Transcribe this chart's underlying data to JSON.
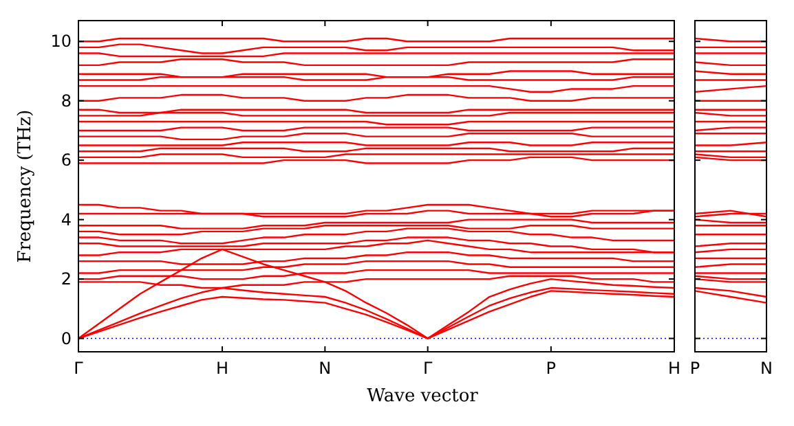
{
  "chart_data": [
    {
      "type": "line",
      "xlabel": "Wave vector",
      "ylabel": "Frequency (THz)",
      "categories": [
        "Γ",
        null,
        null,
        null,
        null,
        null,
        null,
        "H",
        null,
        null,
        null,
        null,
        "N",
        null,
        null,
        null,
        null,
        "Γ",
        null,
        null,
        null,
        null,
        null,
        "P",
        null,
        null,
        null,
        null,
        null,
        "H"
      ],
      "ylim": [
        -0.45,
        10.7
      ],
      "yticks": [
        0,
        2,
        4,
        6,
        8,
        10
      ],
      "ref_lines": [
        {
          "axis": "y",
          "value": 0,
          "color": "#0000ff",
          "line_style": "dotted"
        }
      ],
      "series": [
        {
          "color": "#ff0000",
          "values": [
            0,
            0.23,
            0.46,
            0.69,
            0.9,
            1.1,
            1.3,
            1.4,
            1.36,
            1.32,
            1.3,
            1.25,
            1.2,
            1.0,
            0.8,
            0.55,
            0.28,
            0,
            0.3,
            0.6,
            0.9,
            1.15,
            1.4,
            1.6,
            1.57,
            1.53,
            1.5,
            1.47,
            1.43,
            1.4
          ]
        },
        {
          "color": "#ff0000",
          "values": [
            0,
            0.28,
            0.56,
            0.84,
            1.1,
            1.35,
            1.55,
            1.7,
            1.62,
            1.55,
            1.5,
            1.45,
            1.4,
            1.2,
            0.95,
            0.65,
            0.33,
            0,
            0.37,
            0.74,
            1.1,
            1.35,
            1.55,
            1.7,
            1.67,
            1.63,
            1.6,
            1.57,
            1.53,
            1.5
          ]
        },
        {
          "color": "#ff0000",
          "values": [
            0,
            0.5,
            1.0,
            1.5,
            1.9,
            2.3,
            2.7,
            3.0,
            2.75,
            2.5,
            2.3,
            2.1,
            1.9,
            1.6,
            1.2,
            0.85,
            0.45,
            0,
            0.45,
            0.9,
            1.4,
            1.65,
            1.85,
            2.0,
            1.93,
            1.87,
            1.8,
            1.77,
            1.73,
            1.7
          ]
        },
        {
          "color": "#ff0000",
          "values": [
            1.9,
            1.9,
            1.9,
            1.9,
            1.8,
            1.8,
            1.7,
            1.7,
            1.8,
            1.8,
            1.8,
            1.9,
            1.9,
            1.9,
            2.0,
            2.0,
            2.0,
            2.0,
            2.0,
            2.0,
            2.0,
            2.1,
            2.1,
            2.1,
            2.1,
            2.0,
            2.0,
            2.0,
            1.9,
            1.9
          ]
        },
        {
          "color": "#ff0000",
          "values": [
            2.0,
            2.0,
            2.1,
            2.1,
            2.1,
            2.1,
            2.0,
            2.0,
            2.0,
            2.1,
            2.1,
            2.2,
            2.2,
            2.2,
            2.3,
            2.3,
            2.3,
            2.3,
            2.3,
            2.3,
            2.2,
            2.2,
            2.2,
            2.2,
            2.2,
            2.2,
            2.2,
            2.2,
            2.2,
            2.2
          ]
        },
        {
          "color": "#ff0000",
          "values": [
            2.2,
            2.2,
            2.3,
            2.3,
            2.3,
            2.3,
            2.3,
            2.3,
            2.3,
            2.4,
            2.4,
            2.5,
            2.5,
            2.5,
            2.6,
            2.6,
            2.6,
            2.6,
            2.6,
            2.5,
            2.5,
            2.4,
            2.4,
            2.4,
            2.4,
            2.4,
            2.4,
            2.4,
            2.4,
            2.4
          ]
        },
        {
          "color": "#ff0000",
          "values": [
            2.6,
            2.6,
            2.6,
            2.6,
            2.6,
            2.5,
            2.5,
            2.5,
            2.5,
            2.6,
            2.6,
            2.7,
            2.7,
            2.7,
            2.8,
            2.8,
            2.9,
            2.9,
            2.9,
            2.8,
            2.8,
            2.7,
            2.7,
            2.7,
            2.7,
            2.7,
            2.7,
            2.6,
            2.6,
            2.6
          ]
        },
        {
          "color": "#ff0000",
          "values": [
            2.8,
            2.8,
            2.9,
            2.9,
            2.9,
            3.0,
            3.0,
            3.0,
            3.0,
            3.0,
            3.0,
            3.0,
            3.0,
            3.1,
            3.1,
            3.2,
            3.2,
            3.3,
            3.2,
            3.1,
            3.0,
            3.0,
            2.9,
            2.9,
            2.9,
            2.9,
            2.9,
            2.9,
            2.9,
            2.9
          ]
        },
        {
          "color": "#ff0000",
          "values": [
            3.2,
            3.2,
            3.1,
            3.1,
            3.1,
            3.1,
            3.1,
            3.1,
            3.1,
            3.2,
            3.2,
            3.2,
            3.2,
            3.2,
            3.3,
            3.3,
            3.4,
            3.4,
            3.4,
            3.3,
            3.3,
            3.2,
            3.2,
            3.1,
            3.1,
            3.0,
            3.0,
            3.0,
            2.9,
            2.9
          ]
        },
        {
          "color": "#ff0000",
          "values": [
            3.4,
            3.4,
            3.3,
            3.3,
            3.3,
            3.2,
            3.2,
            3.2,
            3.3,
            3.4,
            3.4,
            3.5,
            3.5,
            3.5,
            3.6,
            3.6,
            3.7,
            3.7,
            3.7,
            3.6,
            3.6,
            3.6,
            3.5,
            3.5,
            3.4,
            3.4,
            3.3,
            3.3,
            3.3,
            3.3
          ]
        },
        {
          "color": "#ff0000",
          "values": [
            3.6,
            3.6,
            3.5,
            3.5,
            3.5,
            3.5,
            3.6,
            3.6,
            3.6,
            3.7,
            3.7,
            3.7,
            3.8,
            3.8,
            3.8,
            3.8,
            3.8,
            3.8,
            3.8,
            3.7,
            3.7,
            3.7,
            3.8,
            3.8,
            3.8,
            3.7,
            3.7,
            3.7,
            3.7,
            3.7
          ]
        },
        {
          "color": "#ff0000",
          "values": [
            3.8,
            3.8,
            3.8,
            3.8,
            3.8,
            3.7,
            3.7,
            3.7,
            3.7,
            3.8,
            3.8,
            3.8,
            3.9,
            3.9,
            3.9,
            3.9,
            3.9,
            3.9,
            3.9,
            4.0,
            4.0,
            4.0,
            4.0,
            4.0,
            4.0,
            3.9,
            3.9,
            3.9,
            3.9,
            3.9
          ]
        },
        {
          "color": "#ff0000",
          "values": [
            4.5,
            4.5,
            4.4,
            4.4,
            4.3,
            4.3,
            4.2,
            4.2,
            4.2,
            4.2,
            4.2,
            4.2,
            4.2,
            4.2,
            4.3,
            4.3,
            4.4,
            4.5,
            4.5,
            4.5,
            4.4,
            4.3,
            4.2,
            4.1,
            4.1,
            4.2,
            4.2,
            4.2,
            4.3,
            4.3
          ]
        },
        {
          "color": "#ff0000",
          "values": [
            4.2,
            4.2,
            4.2,
            4.2,
            4.2,
            4.2,
            4.2,
            4.2,
            4.2,
            4.1,
            4.1,
            4.1,
            4.1,
            4.1,
            4.2,
            4.2,
            4.2,
            4.3,
            4.3,
            4.2,
            4.2,
            4.2,
            4.2,
            4.2,
            4.2,
            4.3,
            4.3,
            4.3,
            4.3,
            4.3
          ]
        },
        {
          "color": "#ff0000",
          "values": [
            5.9,
            5.9,
            5.9,
            5.9,
            5.9,
            5.9,
            5.9,
            5.9,
            5.9,
            5.9,
            6.0,
            6.0,
            6.0,
            6.0,
            5.9,
            5.9,
            5.9,
            5.9,
            5.9,
            6.0,
            6.0,
            6.0,
            6.1,
            6.1,
            6.1,
            6.0,
            6.0,
            6.0,
            6.0,
            6.0
          ]
        },
        {
          "color": "#ff0000",
          "values": [
            6.1,
            6.1,
            6.1,
            6.1,
            6.2,
            6.2,
            6.2,
            6.2,
            6.1,
            6.1,
            6.1,
            6.1,
            6.1,
            6.2,
            6.2,
            6.2,
            6.2,
            6.2,
            6.2,
            6.2,
            6.2,
            6.2,
            6.2,
            6.2,
            6.2,
            6.2,
            6.2,
            6.2,
            6.2,
            6.2
          ]
        },
        {
          "color": "#ff0000",
          "values": [
            6.3,
            6.3,
            6.3,
            6.3,
            6.4,
            6.4,
            6.4,
            6.4,
            6.4,
            6.4,
            6.4,
            6.3,
            6.3,
            6.3,
            6.4,
            6.4,
            6.4,
            6.4,
            6.4,
            6.4,
            6.4,
            6.3,
            6.3,
            6.3,
            6.3,
            6.3,
            6.3,
            6.4,
            6.4,
            6.4
          ]
        },
        {
          "color": "#ff0000",
          "values": [
            6.5,
            6.5,
            6.5,
            6.5,
            6.5,
            6.5,
            6.5,
            6.5,
            6.6,
            6.6,
            6.6,
            6.6,
            6.6,
            6.6,
            6.5,
            6.5,
            6.5,
            6.5,
            6.5,
            6.6,
            6.6,
            6.6,
            6.5,
            6.5,
            6.5,
            6.6,
            6.6,
            6.6,
            6.6,
            6.6
          ]
        },
        {
          "color": "#ff0000",
          "values": [
            6.8,
            6.8,
            6.8,
            6.8,
            6.8,
            6.7,
            6.7,
            6.7,
            6.8,
            6.8,
            6.8,
            6.9,
            6.9,
            6.9,
            6.8,
            6.8,
            6.8,
            6.8,
            6.8,
            6.9,
            6.9,
            6.9,
            6.9,
            6.9,
            6.9,
            6.8,
            6.8,
            6.8,
            6.8,
            6.8
          ]
        },
        {
          "color": "#ff0000",
          "values": [
            7.0,
            7.0,
            7.0,
            7.0,
            7.0,
            7.1,
            7.1,
            7.1,
            7.0,
            7.0,
            7.0,
            7.1,
            7.1,
            7.1,
            7.1,
            7.1,
            7.1,
            7.1,
            7.1,
            7.0,
            7.0,
            7.0,
            7.0,
            7.0,
            7.0,
            7.1,
            7.1,
            7.1,
            7.1,
            7.1
          ]
        },
        {
          "color": "#ff0000",
          "values": [
            7.3,
            7.3,
            7.3,
            7.3,
            7.3,
            7.3,
            7.3,
            7.3,
            7.3,
            7.3,
            7.3,
            7.3,
            7.3,
            7.3,
            7.3,
            7.2,
            7.2,
            7.2,
            7.2,
            7.3,
            7.3,
            7.3,
            7.3,
            7.3,
            7.3,
            7.3,
            7.3,
            7.3,
            7.3,
            7.3
          ]
        },
        {
          "color": "#ff0000",
          "values": [
            7.5,
            7.5,
            7.5,
            7.5,
            7.6,
            7.6,
            7.6,
            7.6,
            7.5,
            7.5,
            7.5,
            7.5,
            7.5,
            7.5,
            7.5,
            7.5,
            7.5,
            7.5,
            7.5,
            7.5,
            7.5,
            7.6,
            7.6,
            7.6,
            7.6,
            7.6,
            7.6,
            7.6,
            7.6,
            7.6
          ]
        },
        {
          "color": "#ff0000",
          "values": [
            7.7,
            7.7,
            7.6,
            7.6,
            7.6,
            7.7,
            7.7,
            7.7,
            7.7,
            7.7,
            7.7,
            7.7,
            7.7,
            7.7,
            7.6,
            7.6,
            7.6,
            7.6,
            7.6,
            7.7,
            7.7,
            7.7,
            7.7,
            7.7,
            7.7,
            7.7,
            7.7,
            7.7,
            7.7,
            7.7
          ]
        },
        {
          "color": "#ff0000",
          "values": [
            8.0,
            8.0,
            8.1,
            8.1,
            8.1,
            8.2,
            8.2,
            8.2,
            8.1,
            8.1,
            8.1,
            8.0,
            8.0,
            8.0,
            8.1,
            8.1,
            8.2,
            8.2,
            8.2,
            8.1,
            8.1,
            8.1,
            8.0,
            8.0,
            8.0,
            8.1,
            8.1,
            8.1,
            8.1,
            8.1
          ]
        },
        {
          "color": "#ff0000",
          "values": [
            8.5,
            8.5,
            8.5,
            8.5,
            8.5,
            8.5,
            8.5,
            8.5,
            8.5,
            8.5,
            8.5,
            8.5,
            8.5,
            8.5,
            8.5,
            8.5,
            8.5,
            8.5,
            8.5,
            8.5,
            8.5,
            8.4,
            8.3,
            8.3,
            8.4,
            8.4,
            8.4,
            8.5,
            8.5,
            8.5
          ]
        },
        {
          "color": "#ff0000",
          "values": [
            8.7,
            8.7,
            8.7,
            8.7,
            8.8,
            8.8,
            8.8,
            8.8,
            8.8,
            8.8,
            8.8,
            8.7,
            8.7,
            8.7,
            8.7,
            8.8,
            8.8,
            8.8,
            8.8,
            8.7,
            8.7,
            8.7,
            8.7,
            8.7,
            8.7,
            8.7,
            8.7,
            8.8,
            8.8,
            8.8
          ]
        },
        {
          "color": "#ff0000",
          "values": [
            8.9,
            8.9,
            8.9,
            8.9,
            8.9,
            8.8,
            8.8,
            8.8,
            8.9,
            8.9,
            8.9,
            8.9,
            8.9,
            8.9,
            8.9,
            8.8,
            8.8,
            8.8,
            8.9,
            8.9,
            8.9,
            9.0,
            9.0,
            9.0,
            9.0,
            8.9,
            8.9,
            8.9,
            8.9,
            8.9
          ]
        },
        {
          "color": "#ff0000",
          "values": [
            9.2,
            9.2,
            9.3,
            9.3,
            9.3,
            9.4,
            9.4,
            9.4,
            9.3,
            9.3,
            9.3,
            9.2,
            9.2,
            9.2,
            9.2,
            9.2,
            9.2,
            9.2,
            9.2,
            9.3,
            9.3,
            9.3,
            9.3,
            9.3,
            9.3,
            9.3,
            9.3,
            9.4,
            9.4,
            9.4
          ]
        },
        {
          "color": "#ff0000",
          "values": [
            9.6,
            9.6,
            9.5,
            9.5,
            9.5,
            9.5,
            9.5,
            9.5,
            9.5,
            9.5,
            9.6,
            9.6,
            9.6,
            9.6,
            9.6,
            9.6,
            9.6,
            9.6,
            9.6,
            9.6,
            9.6,
            9.6,
            9.6,
            9.6,
            9.6,
            9.6,
            9.6,
            9.6,
            9.6,
            9.6
          ]
        },
        {
          "color": "#ff0000",
          "values": [
            9.8,
            9.8,
            9.9,
            9.9,
            9.8,
            9.7,
            9.6,
            9.6,
            9.7,
            9.8,
            9.8,
            9.8,
            9.8,
            9.8,
            9.7,
            9.7,
            9.8,
            9.8,
            9.8,
            9.8,
            9.8,
            9.8,
            9.8,
            9.8,
            9.8,
            9.8,
            9.8,
            9.7,
            9.7,
            9.7
          ]
        },
        {
          "color": "#ff0000",
          "values": [
            10.0,
            10.0,
            10.1,
            10.1,
            10.1,
            10.1,
            10.1,
            10.1,
            10.1,
            10.1,
            10.0,
            10.0,
            10.0,
            10.0,
            10.1,
            10.1,
            10.0,
            10.0,
            10.0,
            10.0,
            10.0,
            10.1,
            10.1,
            10.1,
            10.1,
            10.1,
            10.1,
            10.1,
            10.1,
            10.1
          ]
        }
      ]
    },
    {
      "type": "line",
      "categories": [
        "P",
        null,
        "N"
      ],
      "ylim": [
        -0.45,
        10.7
      ],
      "yticks": [
        0,
        2,
        4,
        6,
        8,
        10
      ],
      "tick_labels": "x",
      "ref_lines": [
        {
          "axis": "y",
          "value": 0,
          "color": "#0000ff",
          "line_style": "dotted"
        }
      ],
      "series": [
        {
          "color": "#ff0000",
          "values": [
            1.6,
            1.4,
            1.2
          ]
        },
        {
          "color": "#ff0000",
          "values": [
            1.7,
            1.6,
            1.4
          ]
        },
        {
          "color": "#ff0000",
          "values": [
            2.0,
            1.9,
            1.9
          ]
        },
        {
          "color": "#ff0000",
          "values": [
            2.1,
            2.0,
            2.0
          ]
        },
        {
          "color": "#ff0000",
          "values": [
            2.2,
            2.2,
            2.2
          ]
        },
        {
          "color": "#ff0000",
          "values": [
            2.4,
            2.5,
            2.5
          ]
        },
        {
          "color": "#ff0000",
          "values": [
            2.7,
            2.7,
            2.7
          ]
        },
        {
          "color": "#ff0000",
          "values": [
            2.9,
            3.0,
            3.0
          ]
        },
        {
          "color": "#ff0000",
          "values": [
            3.1,
            3.2,
            3.2
          ]
        },
        {
          "color": "#ff0000",
          "values": [
            3.5,
            3.5,
            3.5
          ]
        },
        {
          "color": "#ff0000",
          "values": [
            3.8,
            3.8,
            3.8
          ]
        },
        {
          "color": "#ff0000",
          "values": [
            4.0,
            3.9,
            3.9
          ]
        },
        {
          "color": "#ff0000",
          "values": [
            4.1,
            4.2,
            4.2
          ]
        },
        {
          "color": "#ff0000",
          "values": [
            4.2,
            4.3,
            4.1
          ]
        },
        {
          "color": "#ff0000",
          "values": [
            6.1,
            6.0,
            6.0
          ]
        },
        {
          "color": "#ff0000",
          "values": [
            6.2,
            6.1,
            6.1
          ]
        },
        {
          "color": "#ff0000",
          "values": [
            6.3,
            6.3,
            6.3
          ]
        },
        {
          "color": "#ff0000",
          "values": [
            6.5,
            6.5,
            6.6
          ]
        },
        {
          "color": "#ff0000",
          "values": [
            6.9,
            6.9,
            6.9
          ]
        },
        {
          "color": "#ff0000",
          "values": [
            7.0,
            7.1,
            7.1
          ]
        },
        {
          "color": "#ff0000",
          "values": [
            7.3,
            7.3,
            7.3
          ]
        },
        {
          "color": "#ff0000",
          "values": [
            7.6,
            7.5,
            7.5
          ]
        },
        {
          "color": "#ff0000",
          "values": [
            7.7,
            7.7,
            7.7
          ]
        },
        {
          "color": "#ff0000",
          "values": [
            8.0,
            8.0,
            8.0
          ]
        },
        {
          "color": "#ff0000",
          "values": [
            8.3,
            8.4,
            8.5
          ]
        },
        {
          "color": "#ff0000",
          "values": [
            8.7,
            8.7,
            8.7
          ]
        },
        {
          "color": "#ff0000",
          "values": [
            9.0,
            8.9,
            8.9
          ]
        },
        {
          "color": "#ff0000",
          "values": [
            9.3,
            9.2,
            9.2
          ]
        },
        {
          "color": "#ff0000",
          "values": [
            9.6,
            9.6,
            9.6
          ]
        },
        {
          "color": "#ff0000",
          "values": [
            9.8,
            9.8,
            9.8
          ]
        },
        {
          "color": "#ff0000",
          "values": [
            10.1,
            10.0,
            10.0
          ]
        }
      ]
    }
  ]
}
